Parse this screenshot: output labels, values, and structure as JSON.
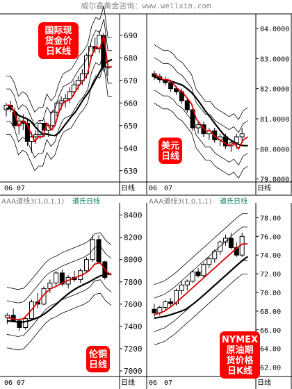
{
  "header": {
    "title": "威尔鑫黄金咨询：www.wellxin.com"
  },
  "colors": {
    "label_bg": "#ff0000",
    "label_text": "#ffffff",
    "ma_red": "#e00000",
    "ma_black": "#000000",
    "band": "#000000",
    "indicator_green": "#007a5a",
    "indicator_gray": "#777777",
    "indicator_purple": "#7a2a8a"
  },
  "charts": [
    {
      "id": "gold",
      "label": [
        "国际现",
        "货金价",
        "日K线"
      ],
      "indicator_name": "",
      "indicator_subname": "",
      "x_ticks": [
        "06",
        "07"
      ],
      "x_unit": "日线",
      "y_ticks": [
        "690",
        "680",
        "670",
        "660",
        "650",
        "640",
        "630"
      ],
      "y_range": [
        625,
        697
      ]
    },
    {
      "id": "usd",
      "label": [
        "美元",
        "日线"
      ],
      "indicator_name": "",
      "indicator_subname": "",
      "x_ticks": [
        "06",
        "07"
      ],
      "x_unit": "日线",
      "y_ticks": [
        "84.0000",
        "83.0000",
        "82.0000",
        "81.0000",
        "80.0000",
        "79.0000"
      ],
      "y_range": [
        78.9,
        84.3
      ]
    },
    {
      "id": "copper",
      "label": [
        "伦铜",
        "日线"
      ],
      "indicator_name": "AAA道线3(1,0,1,1)",
      "indicator_subname": "道氏日线",
      "x_ticks": [
        "06",
        "07"
      ],
      "x_unit": "日线",
      "y_ticks": [
        "8400",
        "8200",
        "8000",
        "7800",
        "7600",
        "7400",
        "7200",
        "7000"
      ],
      "y_range": [
        6950,
        8460
      ]
    },
    {
      "id": "oil",
      "label": [
        "NYMEX",
        "原油期",
        "货价格",
        "日K线"
      ],
      "indicator_name": "AAA道线3(1,0,1,1)",
      "indicator_subname": "道氏日线",
      "x_ticks": [
        "06",
        "07"
      ],
      "x_unit": "日线",
      "y_ticks": [
        "78.00",
        "76.00",
        "74.00",
        "72.00",
        "70.00",
        "68.00",
        "66.00",
        "64.00",
        "62.00"
      ],
      "y_range": [
        61.0,
        79.0
      ]
    }
  ],
  "chart_data": [
    {
      "type": "line",
      "title": "国际现货金价日K线",
      "xlabel": "日线",
      "ylabel": "",
      "x_ticks": [
        "06",
        "07"
      ],
      "ylim": [
        625,
        697
      ],
      "series": [
        {
          "values": [
            659,
            659,
            656,
            650,
            652,
            651,
            647,
            643,
            645,
            645,
            651,
            648,
            650,
            656,
            660,
            661,
            662,
            665,
            668,
            670,
            673,
            681,
            685,
            684,
            690,
            676,
            676
          ]
        }
      ],
      "candles": [
        [
          657,
          660,
          654,
          659
        ],
        [
          659,
          661,
          656,
          658
        ],
        [
          656,
          658,
          648,
          650
        ],
        [
          650,
          654,
          646,
          652
        ],
        [
          652,
          655,
          648,
          651
        ],
        [
          651,
          653,
          641,
          643
        ],
        [
          643,
          647,
          638,
          645
        ],
        [
          645,
          648,
          642,
          646
        ],
        [
          646,
          652,
          644,
          651
        ],
        [
          651,
          653,
          645,
          648
        ],
        [
          648,
          651,
          645,
          650
        ],
        [
          650,
          657,
          648,
          656
        ],
        [
          656,
          661,
          654,
          660
        ],
        [
          660,
          663,
          657,
          661
        ],
        [
          661,
          664,
          658,
          662
        ],
        [
          662,
          667,
          660,
          665
        ],
        [
          665,
          670,
          663,
          668
        ],
        [
          668,
          672,
          666,
          670
        ],
        [
          670,
          675,
          668,
          673
        ],
        [
          673,
          682,
          671,
          681
        ],
        [
          681,
          686,
          679,
          685
        ],
        [
          685,
          689,
          682,
          684
        ],
        [
          684,
          692,
          682,
          690
        ],
        [
          690,
          691,
          674,
          676
        ],
        [
          676,
          678,
          672,
          676
        ]
      ]
    },
    {
      "type": "line",
      "title": "美元日线",
      "xlabel": "日线",
      "ylabel": "",
      "x_ticks": [
        "06",
        "07"
      ],
      "ylim": [
        78.9,
        84.3
      ],
      "series": [
        {
          "values": [
            82.5,
            82.4,
            82.3,
            82.3,
            82.2,
            82.0,
            81.9,
            81.7,
            81.5,
            81.0,
            80.8,
            80.6,
            80.6,
            80.4,
            80.3,
            80.2,
            80.1,
            80.2,
            80.0,
            80.3,
            80.4
          ]
        }
      ],
      "candles": [
        [
          82.5,
          82.6,
          82.3,
          82.4
        ],
        [
          82.4,
          82.5,
          82.2,
          82.3
        ],
        [
          82.3,
          82.4,
          82.1,
          82.2
        ],
        [
          82.2,
          82.3,
          81.9,
          82.0
        ],
        [
          82.0,
          82.1,
          81.8,
          81.9
        ],
        [
          81.9,
          82.0,
          81.5,
          81.6
        ],
        [
          81.6,
          81.7,
          81.2,
          81.3
        ],
        [
          81.3,
          81.4,
          80.6,
          80.7
        ],
        [
          80.7,
          80.9,
          80.5,
          80.8
        ],
        [
          80.8,
          80.9,
          80.4,
          80.5
        ],
        [
          80.5,
          80.7,
          80.3,
          80.6
        ],
        [
          80.6,
          80.7,
          80.2,
          80.3
        ],
        [
          80.3,
          80.5,
          80.1,
          80.4
        ],
        [
          80.4,
          80.5,
          80.0,
          80.1
        ],
        [
          80.1,
          80.3,
          79.9,
          80.2
        ],
        [
          80.2,
          80.5,
          80.0,
          80.4
        ],
        [
          80.4,
          80.7,
          80.2,
          80.5
        ]
      ]
    },
    {
      "type": "line",
      "title": "伦铜日线",
      "xlabel": "日线",
      "ylabel": "",
      "x_ticks": [
        "06",
        "07"
      ],
      "ylim": [
        6950,
        8460
      ],
      "series": [
        {
          "values": [
            7480,
            7470,
            7460,
            7470,
            7520,
            7580,
            7640,
            7700,
            7740,
            7760,
            7790,
            7810,
            7830,
            7850,
            7870,
            7900,
            7960,
            7970,
            7900,
            7860
          ]
        }
      ],
      "candles": [
        [
          7480,
          7520,
          7420,
          7500
        ],
        [
          7500,
          7560,
          7440,
          7450
        ],
        [
          7450,
          7470,
          7360,
          7390
        ],
        [
          7390,
          7480,
          7370,
          7470
        ],
        [
          7470,
          7640,
          7460,
          7620
        ],
        [
          7620,
          7700,
          7560,
          7600
        ],
        [
          7600,
          7760,
          7590,
          7740
        ],
        [
          7740,
          7820,
          7700,
          7790
        ],
        [
          7790,
          7900,
          7760,
          7880
        ],
        [
          7880,
          7910,
          7760,
          7780
        ],
        [
          7780,
          7860,
          7740,
          7840
        ],
        [
          7840,
          7900,
          7800,
          7820
        ],
        [
          7820,
          7920,
          7790,
          7900
        ],
        [
          7900,
          8020,
          7880,
          8000
        ],
        [
          8000,
          8220,
          7980,
          8180
        ],
        [
          8180,
          8220,
          7960,
          7980
        ],
        [
          7980,
          7990,
          7820,
          7840
        ]
      ]
    },
    {
      "type": "line",
      "title": "NYMEX原油期货价格日K线",
      "xlabel": "日线",
      "ylabel": "",
      "x_ticks": [
        "06",
        "07"
      ],
      "ylim": [
        61.0,
        79.0
      ],
      "series": [
        {
          "values": [
            67.6,
            67.8,
            68.0,
            68.4,
            68.8,
            69.3,
            69.8,
            70.3,
            70.8,
            71.3,
            71.8,
            72.3,
            72.8,
            73.3,
            73.8,
            74.3,
            74.8,
            75.2,
            75.2
          ]
        }
      ],
      "candles": [
        [
          68.2,
          68.8,
          67.4,
          67.8
        ],
        [
          67.8,
          68.6,
          67.5,
          68.4
        ],
        [
          68.4,
          69.2,
          68.0,
          69.0
        ],
        [
          69.0,
          69.4,
          68.4,
          68.8
        ],
        [
          68.8,
          70.4,
          68.6,
          70.2
        ],
        [
          70.2,
          71.2,
          69.8,
          70.8
        ],
        [
          70.8,
          71.4,
          70.2,
          71.2
        ],
        [
          71.2,
          72.4,
          71.0,
          72.2
        ],
        [
          72.2,
          72.6,
          71.6,
          71.8
        ],
        [
          71.8,
          73.2,
          71.6,
          73.0
        ],
        [
          73.0,
          73.8,
          72.6,
          73.6
        ],
        [
          73.6,
          74.6,
          73.2,
          74.4
        ],
        [
          74.4,
          75.6,
          74.0,
          75.4
        ],
        [
          75.4,
          76.2,
          75.0,
          75.8
        ],
        [
          75.8,
          76.4,
          74.6,
          74.8
        ],
        [
          74.8,
          75.4,
          73.8,
          74.0
        ],
        [
          74.0,
          76.4,
          73.8,
          76.0
        ]
      ]
    }
  ]
}
